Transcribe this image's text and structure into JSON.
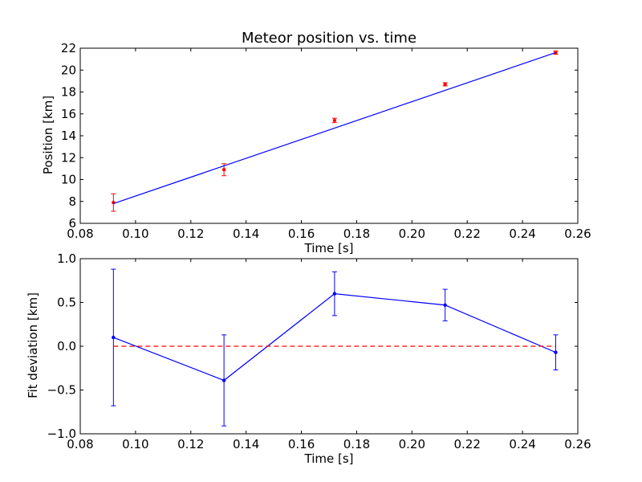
{
  "chart_data": [
    {
      "type": "scatter",
      "title": "Meteor position vs. time",
      "xlabel": "Time [s]",
      "ylabel": "Position [km]",
      "xlim": [
        0.08,
        0.26
      ],
      "ylim": [
        6,
        22
      ],
      "xticks": [
        "0.08",
        "0.10",
        "0.12",
        "0.14",
        "0.16",
        "0.18",
        "0.20",
        "0.22",
        "0.24",
        "0.26"
      ],
      "yticks": [
        "6",
        "8",
        "10",
        "12",
        "14",
        "16",
        "18",
        "20",
        "22"
      ],
      "grid": false,
      "series": [
        {
          "kind": "errorbar-points",
          "color": "#ff0000",
          "x": [
            0.092,
            0.132,
            0.172,
            0.212,
            0.252
          ],
          "y": [
            7.9,
            10.9,
            15.4,
            18.7,
            21.6
          ],
          "yerr": [
            0.8,
            0.55,
            0.2,
            0.15,
            0.15
          ]
        },
        {
          "kind": "fit-line",
          "color": "#0000ff",
          "x": [
            0.092,
            0.252
          ],
          "y": [
            7.8,
            21.6
          ]
        }
      ]
    },
    {
      "type": "line",
      "title": "",
      "xlabel": "Time [s]",
      "ylabel": "Fit deviation [km]",
      "xlim": [
        0.08,
        0.26
      ],
      "ylim": [
        -1.0,
        1.0
      ],
      "xticks": [
        "0.08",
        "0.10",
        "0.12",
        "0.14",
        "0.16",
        "0.18",
        "0.20",
        "0.22",
        "0.24",
        "0.26"
      ],
      "yticks": [
        "−1.0",
        "−0.5",
        "0.0",
        "0.5",
        "1.0"
      ],
      "grid": false,
      "series": [
        {
          "kind": "errorbar-line",
          "color": "#0000ff",
          "x": [
            0.092,
            0.132,
            0.172,
            0.212,
            0.252
          ],
          "y": [
            0.1,
            -0.39,
            0.6,
            0.47,
            -0.07
          ],
          "yerr": [
            0.78,
            0.52,
            0.25,
            0.18,
            0.2
          ]
        },
        {
          "kind": "zero-line",
          "color": "#ff0000",
          "linestyle": "dashed",
          "x": [
            0.092,
            0.252
          ],
          "y": [
            0.0,
            0.0
          ]
        }
      ]
    }
  ]
}
